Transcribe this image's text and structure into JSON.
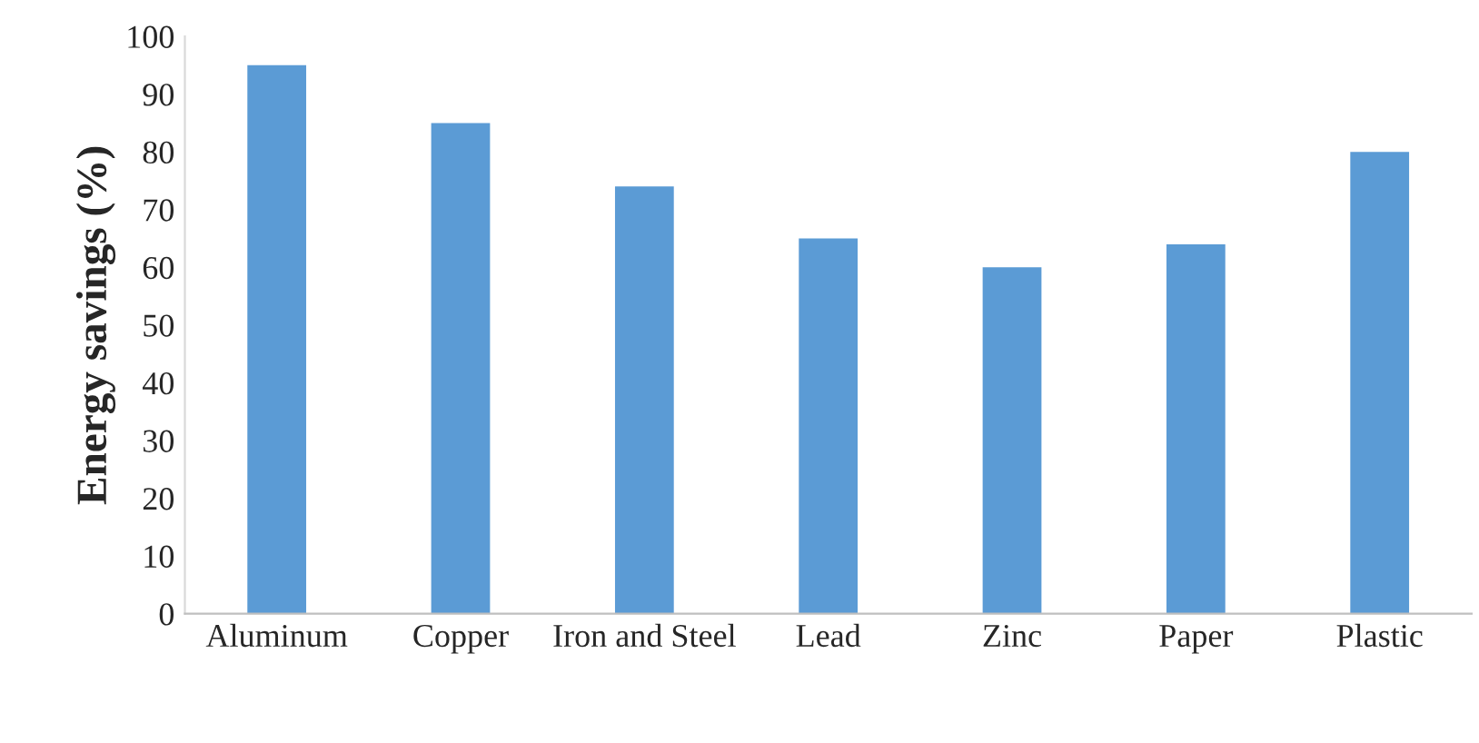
{
  "chart_data": {
    "type": "bar",
    "ylabel": "Energy savings (%)",
    "categories": [
      "Aluminum",
      "Copper",
      "Iron and Steel",
      "Lead",
      "Zinc",
      "Paper",
      "Plastic"
    ],
    "values": [
      95,
      85,
      74,
      65,
      60,
      64,
      80
    ],
    "color": "#5b9bd5",
    "ylim": [
      0,
      100
    ],
    "yticks": [
      0,
      10,
      20,
      30,
      40,
      50,
      60,
      70,
      80,
      90,
      100
    ],
    "grid": false,
    "legend": false
  }
}
